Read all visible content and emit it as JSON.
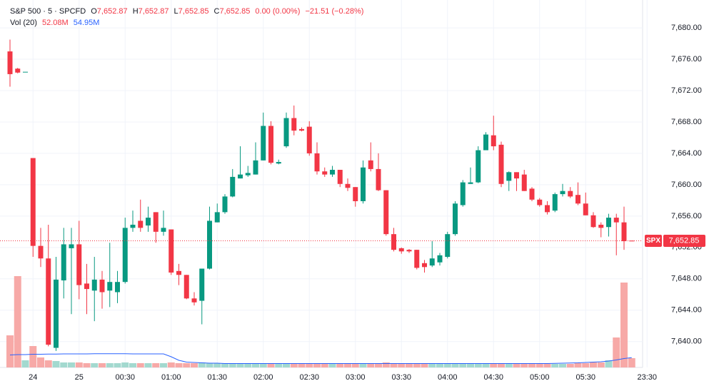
{
  "chart_data": {
    "type": "candlestick",
    "title": "S&P 500 · 5 · SPCFD",
    "header": {
      "o_label": "O",
      "o": "7,652.87",
      "h_label": "H",
      "h": "7,652.87",
      "l_label": "L",
      "l": "7,652.85",
      "c_label": "C",
      "c": "7,652.85",
      "change": "0.00 (0.00%)",
      "change2": "−21.51 (−0.28%)",
      "vol_title": "Vol (20)",
      "vol": "52.08M",
      "vol_ma": "54.95M"
    },
    "categories": [
      null,
      null,
      null,
      "24",
      null,
      null,
      null,
      null,
      null,
      "25",
      null,
      null,
      null,
      null,
      null,
      "00:30",
      null,
      null,
      null,
      null,
      null,
      "01:00",
      null,
      null,
      null,
      null,
      null,
      "01:30",
      null,
      null,
      null,
      null,
      null,
      "02:00",
      null,
      null,
      null,
      null,
      null,
      "02:30",
      null,
      null,
      null,
      null,
      null,
      "03:00",
      null,
      null,
      null,
      null,
      null,
      "03:30",
      null,
      null,
      null,
      null,
      null,
      "04:00",
      null,
      null,
      null,
      null,
      null,
      "04:30",
      null,
      null,
      null,
      null,
      null,
      "05:00",
      null,
      null,
      null,
      null,
      null,
      "05:30",
      null,
      null,
      null,
      null,
      null,
      null,
      null,
      "23:30"
    ],
    "open": [
      7677,
      7674.8,
      7674.4,
      7663.4,
      7652.2,
      7650.6,
      7639.2,
      7647.8,
      7651.9,
      7652.4,
      7647.4,
      7646.5,
      7647.9,
      7646.5,
      7646.3,
      7647.6,
      7654.5,
      7655.4,
      7654.8,
      7656.5,
      7654,
      7654.3,
      7649,
      7648.5,
      7645.5,
      7645.2,
      7649.3,
      7655.2,
      7656.5,
      7658.5,
      7660.8,
      7661.2,
      7661.3,
      7663.1,
      7667.5,
      7662.7,
      7664.9,
      7668.5,
      7667.1,
      7667.4,
      7664,
      7661.7,
      7661.3,
      7661.9,
      7660.1,
      7659.7,
      7657.9,
      7663.1,
      7662,
      7659.3,
      7653.7,
      7651.9,
      7651.7,
      7651.7,
      7650,
      7649.7,
      7650.1,
      7650.8,
      7653.7,
      7657.4,
      7660.1,
      7660.3,
      7664.4,
      7666.3,
      7665.1,
      7660.5,
      7661.6,
      7661.3,
      7659.5,
      7658.1,
      7657.4,
      7656.7,
      7658.8,
      7659.2,
      7658.7,
      7657.6,
      7656.1,
      7654.9,
      7654.6,
      7655.8,
      7655.2,
      7652.87,
      null,
      null
    ],
    "high": [
      7678.5,
      7674.9,
      7674.4,
      7663.4,
      7654.5,
      7654.9,
      7650.8,
      7654.5,
      7654.5,
      7655.4,
      7649.9,
      7650.8,
      7649,
      7652.6,
      7649,
      7655.8,
      7656.7,
      7658.1,
      7657.2,
      7656.5,
      7656.7,
      7654.3,
      7649.9,
      7648.5,
      7646.3,
      7649.3,
      7657.2,
      7657.6,
      7658.8,
      7662,
      7664.9,
      7662.4,
      7665.4,
      7669.2,
      7668.1,
      7663.2,
      7669.2,
      7670.1,
      7667.3,
      7668.1,
      7665.4,
      7662.2,
      7662.4,
      7661.9,
      7660.8,
      7659.7,
      7663.1,
      7665.4,
      7664,
      7659.3,
      7654.5,
      7652,
      7651.8,
      7651.7,
      7650.4,
      7652.8,
      7651.3,
      7654,
      7657.9,
      7660.6,
      7662.2,
      7664.9,
      7666.7,
      7668.8,
      7665.5,
      7661.7,
      7661.6,
      7661.9,
      7659.7,
      7658.3,
      7657.9,
      7659,
      7660.1,
      7659.7,
      7660.3,
      7659,
      7656.5,
      7655.2,
      7656.3,
      7656.3,
      7657.2,
      7652.87,
      null,
      null
    ],
    "low": [
      7672.5,
      7674.2,
      7674.4,
      7650.8,
      7649.5,
      7639.4,
      7638.8,
      7645.5,
      7643.5,
      7645.4,
      7643.5,
      7642.6,
      7644.2,
      7644.4,
      7644.9,
      7647.4,
      7654,
      7654,
      7654,
      7652.6,
      7653.5,
      7648.5,
      7647.2,
      7645.4,
      7644.6,
      7642.2,
      7649.2,
      7655.2,
      7656.3,
      7658.4,
      7660.8,
      7661,
      7661.3,
      7663.1,
      7662.6,
      7662.6,
      7664.7,
      7666.3,
      7666.8,
      7663.7,
      7661.3,
      7661,
      7661,
      7659.7,
      7659.2,
      7657.2,
      7657.6,
      7661.7,
      7659.2,
      7653.5,
      7651.5,
      7651.2,
      7651.3,
      7649.2,
      7648.8,
      7649.5,
      7649.7,
      7650.6,
      7653.5,
      7657.2,
      7660.1,
      7660.2,
      7664.4,
      7664.4,
      7659.7,
      7659.2,
      7659.2,
      7659.2,
      7657.9,
      7657.2,
      7656.2,
      7656.5,
      7658.5,
      7658.3,
      7657.4,
      7656.1,
      7654.5,
      7653.3,
      7653.4,
      7651,
      7651.7,
      7652.85,
      null,
      null
    ],
    "close": [
      7674.1,
      7674.3,
      7674.4,
      7652.2,
      7650.6,
      7639.6,
      7647.9,
      7652.4,
      7652.4,
      7647.2,
      7646.7,
      7647.9,
      7646.3,
      7647.6,
      7647.6,
      7654.5,
      7654.9,
      7654.5,
      7655.8,
      7654,
      7654.5,
      7648.8,
      7648.5,
      7645.5,
      7645,
      7649.3,
      7655.4,
      7656.5,
      7658.5,
      7661,
      7661.3,
      7661.5,
      7663.1,
      7667.5,
      7662.8,
      7662.9,
      7668.5,
      7666.9,
      7666.9,
      7664,
      7661.7,
      7661.3,
      7661.9,
      7660.1,
      7659.6,
      7657.9,
      7662.2,
      7662,
      7659.3,
      7653.7,
      7651.7,
      7651.5,
      7651.5,
      7649.4,
      7649.5,
      7650.6,
      7651,
      7653.7,
      7657.6,
      7660.3,
      7660.3,
      7664.4,
      7666.4,
      7664.9,
      7660.1,
      7661.6,
      7660.8,
      7659.2,
      7658.1,
      7657.4,
      7656.5,
      7658.8,
      7659.2,
      7658.5,
      7657.6,
      7656.1,
      7654.6,
      7654.5,
      7655.8,
      7655.2,
      7652.8,
      7652.85,
      null,
      null
    ],
    "volume": [
      180,
      512,
      40,
      120,
      56,
      40,
      36,
      28,
      28,
      28,
      24,
      24,
      24,
      24,
      24,
      28,
      24,
      24,
      24,
      24,
      24,
      28,
      24,
      24,
      24,
      28,
      24,
      24,
      24,
      24,
      24,
      20,
      24,
      24,
      24,
      20,
      24,
      24,
      20,
      24,
      24,
      20,
      20,
      24,
      20,
      24,
      24,
      20,
      24,
      28,
      24,
      20,
      20,
      24,
      20,
      20,
      20,
      24,
      24,
      20,
      20,
      24,
      24,
      20,
      24,
      20,
      20,
      20,
      20,
      20,
      20,
      20,
      20,
      20,
      24,
      24,
      28,
      28,
      40,
      168,
      476,
      52.08,
      null,
      null
    ],
    "volume_ma": [
      70,
      72,
      72,
      74,
      74,
      75,
      75,
      76,
      76,
      76,
      76,
      77,
      77,
      77,
      77,
      77,
      76,
      76,
      76,
      76,
      76,
      60,
      40,
      30,
      28,
      26,
      24,
      24,
      22,
      22,
      22,
      22,
      22,
      22,
      22,
      22,
      22,
      22,
      22,
      22,
      22,
      22,
      22,
      22,
      22,
      22,
      22,
      22,
      22,
      22,
      22,
      22,
      22,
      22,
      22,
      22,
      22,
      22,
      22,
      22,
      22,
      22,
      22,
      22,
      22,
      22,
      22,
      22,
      22,
      22,
      22,
      23,
      24,
      25,
      26,
      28,
      30,
      32,
      36,
      42,
      50,
      54.95,
      null,
      null
    ],
    "ylim": [
      7636.7,
      7683.1
    ],
    "yticks": [
      {
        "value": 7640,
        "label": "7,640.00"
      },
      {
        "value": 7644,
        "label": "7,644.00"
      },
      {
        "value": 7648,
        "label": "7,648.00"
      },
      {
        "value": 7652,
        "label": "7,652.00"
      },
      {
        "value": 7656,
        "label": "7,656.00"
      },
      {
        "value": 7660,
        "label": "7,660.00"
      },
      {
        "value": 7664,
        "label": "7,664.00"
      },
      {
        "value": 7668,
        "label": "7,668.00"
      },
      {
        "value": 7672,
        "label": "7,672.00"
      },
      {
        "value": 7676,
        "label": "7,676.00"
      },
      {
        "value": 7680,
        "label": "7,680.00"
      }
    ],
    "grid": true,
    "up_color": "#089981",
    "down_color": "#f23645",
    "volume_up_color": "#a3d9cf",
    "volume_down_color": "#f7a9a7",
    "ma_color": "#2962ff",
    "symbol": "SPX",
    "last_price": 7652.85,
    "last_price_label": "7,652.85"
  }
}
